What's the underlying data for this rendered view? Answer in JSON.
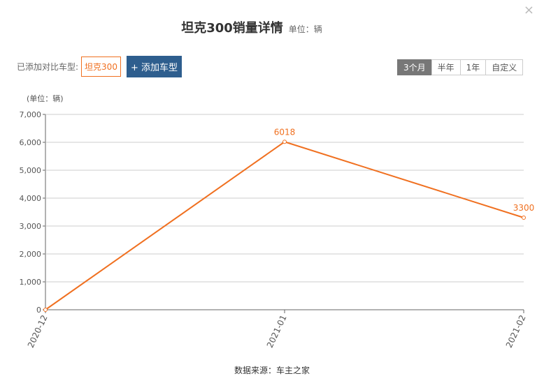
{
  "header": {
    "title": "坦克300销量详情",
    "unit": "单位：辆"
  },
  "compare": {
    "label": "已添加对比车型:",
    "selected": "坦克300",
    "add_button": "+ 添加车型"
  },
  "tabs": [
    "3个月",
    "半年",
    "1年",
    "自定义"
  ],
  "chart_data": {
    "type": "line",
    "y_axis_label": "(单位：辆)",
    "categories": [
      "2020-12",
      "2021-01",
      "2021-02"
    ],
    "values": [
      0,
      6018,
      3300
    ],
    "color": "#f07020",
    "ylim": [
      0,
      7000
    ],
    "yticks": [
      0,
      {
        "value": 1000,
        "label": "1,000"
      },
      {
        "value": 2000,
        "label": "2,000"
      },
      {
        "value": 3000,
        "label": "3,000"
      },
      {
        "value": 4000,
        "label": "4,000"
      },
      {
        "value": 5000,
        "label": "5,000"
      },
      {
        "value": 6000,
        "label": "6,000"
      },
      {
        "value": 7000,
        "label": "7,000"
      }
    ],
    "grid": true
  },
  "footer": {
    "source": "数据来源：车主之家"
  }
}
